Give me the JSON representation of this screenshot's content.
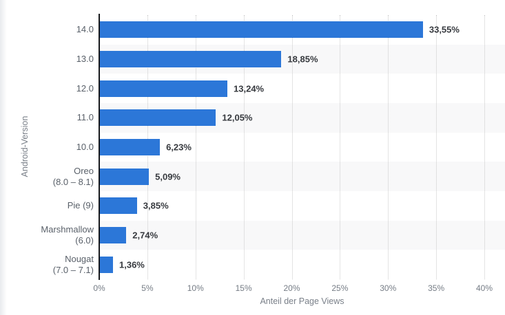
{
  "page": {
    "background_color": "#ffffff"
  },
  "chart_data": {
    "type": "bar",
    "orientation": "horizontal",
    "categories": [
      [
        "14.0"
      ],
      [
        "13.0"
      ],
      [
        "12.0"
      ],
      [
        "11.0"
      ],
      [
        "10.0"
      ],
      [
        "Oreo",
        "(8.0 – 8.1)"
      ],
      [
        "Pie (9)"
      ],
      [
        "Marshmallow",
        "(6.0)"
      ],
      [
        "Nougat",
        "(7.0 – 7.1)"
      ]
    ],
    "values": [
      33.55,
      18.85,
      13.24,
      12.05,
      6.23,
      5.09,
      3.85,
      2.74,
      1.36
    ],
    "value_labels": [
      "33,55%",
      "18,85%",
      "13,24%",
      "12,05%",
      "6,23%",
      "5,09%",
      "3,85%",
      "2,74%",
      "1,36%"
    ],
    "xlabel": "Anteil der Page Views",
    "ylabel": "Android-Version",
    "x_ticks": [
      "0%",
      "5%",
      "10%",
      "15%",
      "20%",
      "25%",
      "30%",
      "35%",
      "40%"
    ],
    "xlim": [
      0,
      40
    ],
    "grid": "vertical-dotted",
    "legend": "none",
    "bar_color": "#2c77d8",
    "stripe_color": "#f8f8f9",
    "gridline_color": "#c9c9c9",
    "axis_line_color": "#17191c"
  }
}
